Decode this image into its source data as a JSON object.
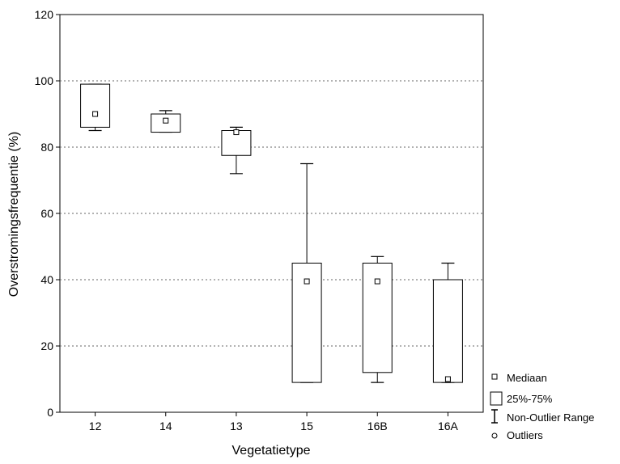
{
  "chart_data": {
    "type": "box",
    "xlabel": "Vegetatietype",
    "ylabel": "Overstromingsfrequentie (%)",
    "ylim": [
      0,
      120
    ],
    "yticks": [
      0,
      20,
      40,
      60,
      80,
      100,
      120
    ],
    "grid": "horizontal-dotted",
    "legend_position": "bottom-right",
    "categories": [
      "12",
      "14",
      "13",
      "15",
      "16B",
      "16A"
    ],
    "boxes": [
      {
        "category": "12",
        "min": 85,
        "q1": 86,
        "median": 90,
        "q3": 99,
        "max": 99
      },
      {
        "category": "14",
        "min": 84.5,
        "q1": 84.5,
        "median": 88,
        "q3": 90,
        "max": 91
      },
      {
        "category": "13",
        "min": 72,
        "q1": 77.5,
        "median": 84.5,
        "q3": 85,
        "max": 86
      },
      {
        "category": "15",
        "min": 9,
        "q1": 9,
        "median": 39.5,
        "q3": 45,
        "max": 75
      },
      {
        "category": "16B",
        "min": 9,
        "q1": 12,
        "median": 39.5,
        "q3": 45,
        "max": 47
      },
      {
        "category": "16A",
        "min": 9,
        "q1": 9,
        "median": 10,
        "q3": 40,
        "max": 45
      }
    ],
    "legend": [
      {
        "symbol": "median-square",
        "label": "Mediaan"
      },
      {
        "symbol": "box",
        "label": "25%-75%"
      },
      {
        "symbol": "whisker",
        "label": "Non-Outlier Range"
      },
      {
        "symbol": "outlier-circle",
        "label": "Outliers"
      }
    ]
  }
}
